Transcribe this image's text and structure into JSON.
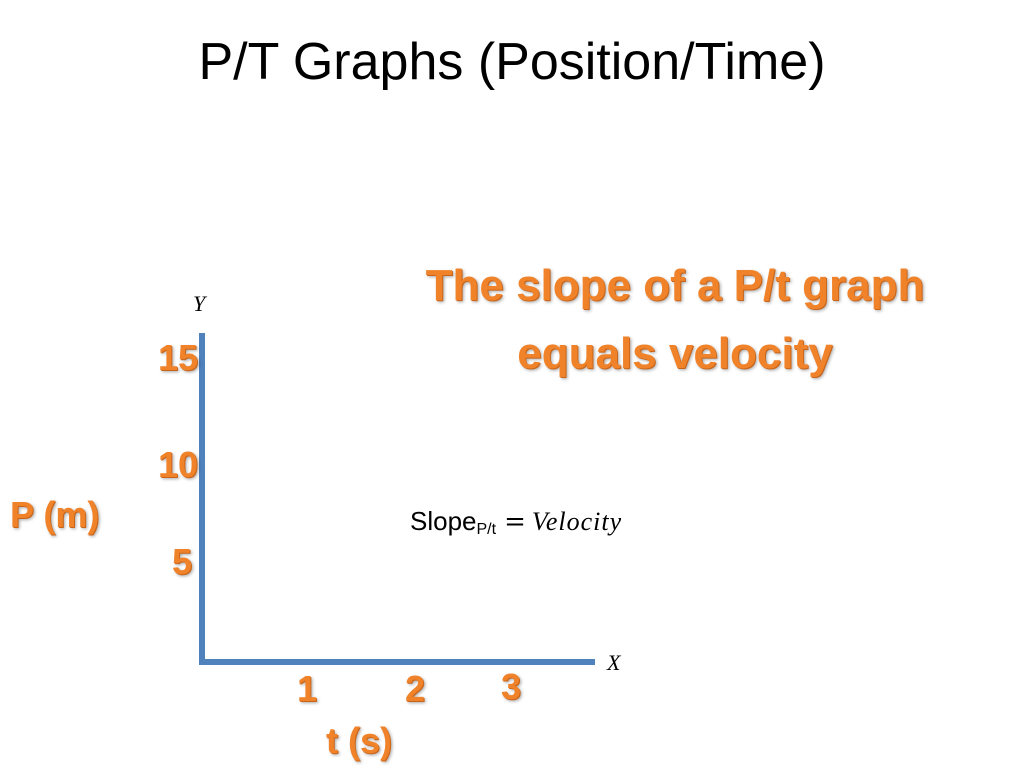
{
  "slide": {
    "title": "P/T Graphs (Position/Time)",
    "headline_line1": "The slope of a P/t graph",
    "headline_line2": "equals velocity",
    "formula": {
      "lhs": "Slope",
      "subscript": "P/t",
      "equals": "=",
      "rhs": "Velocity"
    },
    "colors": {
      "accent_orange": "#f0832a",
      "axis_blue": "#4f81bd"
    }
  },
  "chart_data": {
    "type": "line",
    "x_axis_letter": "X",
    "y_axis_letter": "Y",
    "xlabel": "t (s)",
    "ylabel": "P (m)",
    "x_ticks": [
      "1",
      "2",
      "3"
    ],
    "y_ticks": [
      "15",
      "10",
      "5"
    ],
    "series": []
  }
}
